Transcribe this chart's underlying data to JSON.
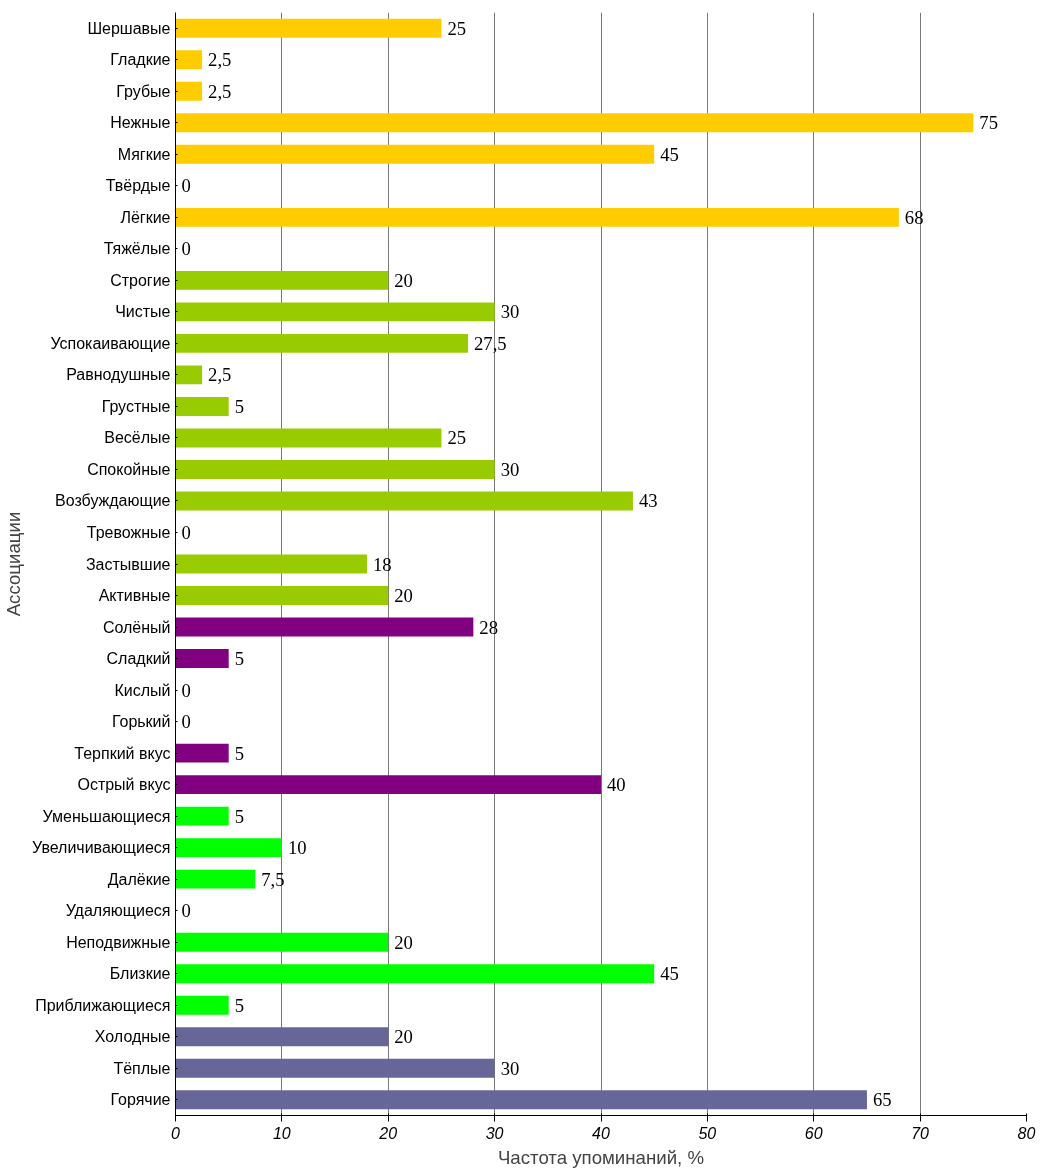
{
  "chart_data": {
    "type": "bar",
    "orientation": "horizontal",
    "xlabel": "Частота упоминаний, %",
    "ylabel": "Ассоциации",
    "categories": [
      "Шершавые",
      "Гладкие",
      "Грубые",
      "Нежные",
      "Мягкие",
      "Твёрдые",
      "Лёгкие",
      "Тяжёлые",
      "Строгие",
      "Чистые",
      "Успокаивающие",
      "Равнодушные",
      "Грустные",
      "Весёлые",
      "Спокойные",
      "Возбуждающие",
      "Тревожные",
      "Застывшие",
      "Активные",
      "Солёный",
      "Сладкий",
      "Кислый",
      "Горький",
      "Терпкий вкус",
      "Острый вкус",
      "Уменьшающиеся",
      "Увеличивающиеся",
      "Далёкие",
      "Удаляющиеся",
      "Неподвижные",
      "Близкие",
      "Приближающиеся",
      "Холодные",
      "Тёплые",
      "Горячие"
    ],
    "values": [
      25,
      2.5,
      2.5,
      75,
      45,
      0,
      68,
      0,
      20,
      30,
      27.5,
      2.5,
      5,
      25,
      30,
      43,
      0,
      18,
      20,
      28,
      5,
      0,
      0,
      5,
      40,
      5,
      10,
      7.5,
      0,
      20,
      45,
      5,
      20,
      30,
      65
    ],
    "value_labels": [
      "25",
      "2,5",
      "2,5",
      "75",
      "45",
      "0",
      "68",
      "0",
      "20",
      "30",
      "27,5",
      "2,5",
      "5",
      "25",
      "30",
      "43",
      "0",
      "18",
      "20",
      "28",
      "5",
      "0",
      "0",
      "5",
      "40",
      "5",
      "10",
      "7,5",
      "0",
      "20",
      "45",
      "5",
      "20",
      "30",
      "65"
    ],
    "colors": [
      "#ffcc00",
      "#ffcc00",
      "#ffcc00",
      "#ffcc00",
      "#ffcc00",
      "#ffcc00",
      "#ffcc00",
      "#ffcc00",
      "#99cc00",
      "#99cc00",
      "#99cc00",
      "#99cc00",
      "#99cc00",
      "#99cc00",
      "#99cc00",
      "#99cc00",
      "#99cc00",
      "#99cc00",
      "#99cc00",
      "#800080",
      "#800080",
      "#800080",
      "#800080",
      "#800080",
      "#800080",
      "#00ff00",
      "#00ff00",
      "#00ff00",
      "#00ff00",
      "#00ff00",
      "#00ff00",
      "#00ff00",
      "#666699",
      "#666699",
      "#666699"
    ],
    "xlim": [
      0,
      80
    ],
    "xticks": [
      0,
      10,
      20,
      30,
      40,
      50,
      60,
      70,
      80
    ],
    "grid": "x"
  }
}
